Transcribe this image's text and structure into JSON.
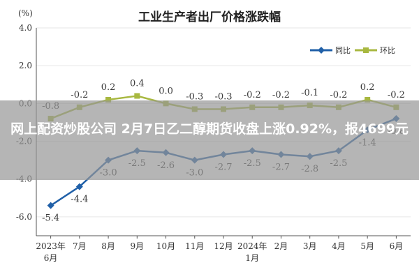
{
  "header": {
    "unit": "(%)",
    "title": "工业生产者出厂价格涨跌幅"
  },
  "overlay": {
    "headline": "网上配资炒股公司 2月7日乙二醇期货收盘上涨0.92%，报4699元"
  },
  "colors": {
    "yoy": "#2060a8",
    "mom": "#a8b840",
    "grid": "#e6e6e6",
    "axis": "#555555",
    "text": "#333333"
  },
  "chart_data": {
    "type": "line",
    "title": "工业生产者出厂价格涨跌幅",
    "ylabel": "(%)",
    "ylim": [
      -7.0,
      4.0
    ],
    "yticks": [
      "4.0",
      "2.0",
      "0.0",
      "-2.0",
      "-4.0",
      "-6.0"
    ],
    "ytick_values": [
      4.0,
      2.0,
      0.0,
      -2.0,
      -4.0,
      -6.0
    ],
    "grid": true,
    "legend_position": "top-right",
    "categories": [
      [
        "2023年",
        "6月"
      ],
      [
        "7月"
      ],
      [
        "8月"
      ],
      [
        "9月"
      ],
      [
        "10月"
      ],
      [
        "11月"
      ],
      [
        "12月"
      ],
      [
        "2024年",
        "1月"
      ],
      [
        "2月"
      ],
      [
        "3月"
      ],
      [
        "4月"
      ],
      [
        "5月"
      ],
      [
        "6月"
      ]
    ],
    "series": [
      {
        "name": "同比",
        "color": "#2060a8",
        "values": [
          -5.4,
          -4.4,
          -3.0,
          -2.5,
          -2.6,
          -3.0,
          -2.7,
          -2.5,
          -2.7,
          -2.8,
          -2.5,
          -1.4,
          -0.8
        ],
        "labels": [
          "-5.4",
          "-4.4",
          "-3.0",
          "-2.5",
          "-2.6",
          "-3.0",
          "-2.7",
          "-2.5",
          "-2.7",
          "-2.8",
          "-2.5",
          "-1.4",
          "-0.8"
        ]
      },
      {
        "name": "环比",
        "color": "#a8b840",
        "values": [
          -0.8,
          -0.2,
          0.2,
          0.4,
          0.0,
          -0.3,
          -0.3,
          -0.2,
          -0.2,
          -0.1,
          -0.2,
          0.2,
          -0.2
        ],
        "labels": [
          "-0.8",
          "-0.2",
          "0.2",
          "0.4",
          "0.0",
          "-0.3",
          "-0.3",
          "-0.2",
          "-0.2",
          "-0.1",
          "-0.2",
          "0.2",
          "-0.2"
        ]
      }
    ]
  }
}
